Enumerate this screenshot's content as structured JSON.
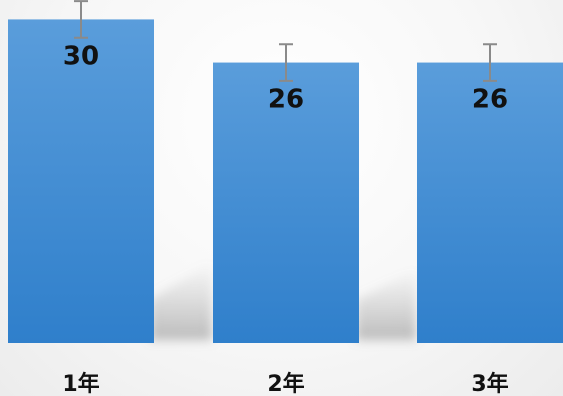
{
  "chart_data": {
    "type": "bar",
    "categories": [
      "1年",
      "2年",
      "3年"
    ],
    "values": [
      30,
      26,
      26
    ],
    "error": [
      1.7,
      1.7,
      1.7
    ],
    "data_labels": [
      "30",
      "26",
      "26"
    ],
    "ylim": [
      0,
      31.8
    ],
    "grid": false,
    "legend": "none",
    "colors": {
      "bar_top": "#5a9ddb",
      "bar_bottom": "#2f7fcb",
      "error_bar": "#8a8a8a",
      "text": "#111111"
    }
  }
}
